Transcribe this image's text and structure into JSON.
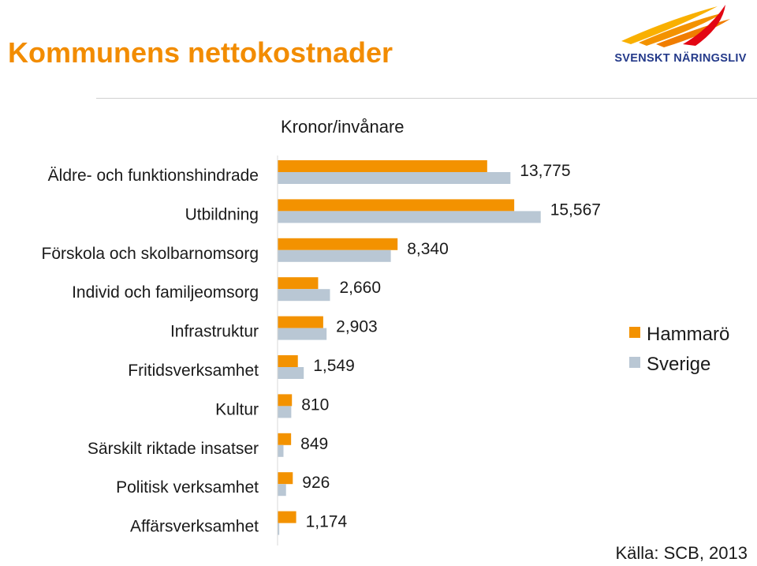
{
  "header": {
    "title": "Kommunens nettokostnader",
    "logo_text": "SVENSKT NÄRINGSLIV"
  },
  "colors": {
    "title": "#f28c00",
    "hammaro": "#f39200",
    "sverige": "#b9c7d4",
    "logo_blue": "#243a8a"
  },
  "chart_data": {
    "type": "bar",
    "orientation": "horizontal",
    "title": "Kronor/invånare",
    "categories": [
      "Äldre- och funktionshindrade",
      "Utbildning",
      "Förskola och skolbarnomsorg",
      "Individ och familjeomsorg",
      "Infrastruktur",
      "Fritidsverksamhet",
      "Kultur",
      "Särskilt riktade insatser",
      "Politisk verksamhet",
      "Affärsverksamhet"
    ],
    "series": [
      {
        "name": "Hammarö",
        "color": "#f39200",
        "values": [
          12400,
          14000,
          7100,
          2400,
          2700,
          1200,
          850,
          800,
          900,
          1100
        ]
      },
      {
        "name": "Sverige",
        "color": "#b9c7d4",
        "values": [
          13775,
          15567,
          6700,
          3100,
          2900,
          1549,
          810,
          350,
          500,
          100
        ]
      }
    ],
    "data_labels": [
      "13,775",
      "15,567",
      "8,340",
      "2,660",
      "2,903",
      "1,549",
      "810",
      "849",
      "926",
      "1,174"
    ],
    "xlim": [
      0,
      16000
    ],
    "legend": "right"
  },
  "source": "Källa: SCB, 2013"
}
